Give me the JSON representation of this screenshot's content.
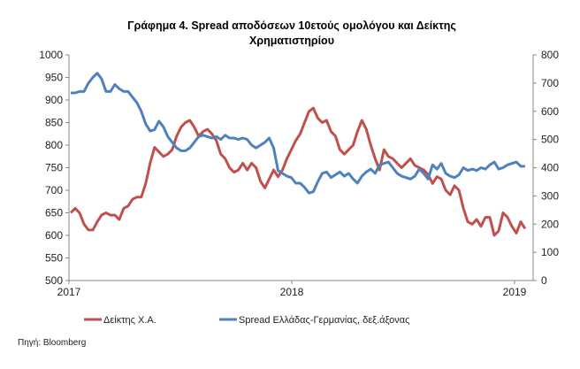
{
  "chart_data": {
    "type": "line",
    "title_lines": [
      "Γράφημα 4. Spread αποδόσεων 10ετούς ομολόγου και Δείκτης",
      "Χρηματιστηρίου"
    ],
    "x_start": 2017.008,
    "x_step": 0.0198,
    "xlim": [
      2017,
      2019.1
    ],
    "x_ticks": [
      {
        "value": 2017,
        "label": "2017"
      },
      {
        "value": 2018,
        "label": "2018"
      },
      {
        "value": 2019,
        "label": "2019"
      }
    ],
    "y_left": {
      "lim": [
        500,
        1000
      ],
      "ticks": [
        "500",
        "550",
        "600",
        "650",
        "700",
        "750",
        "800",
        "850",
        "900",
        "950",
        "1000"
      ]
    },
    "y_right": {
      "lim": [
        0,
        800
      ],
      "ticks": [
        "0",
        "100",
        "200",
        "300",
        "400",
        "500",
        "600",
        "700",
        "800"
      ]
    },
    "grid": false,
    "legend_position": "bottom",
    "series": [
      {
        "name": "Δείκτης Χ.Α.",
        "axis": "left",
        "color": "#C0504D",
        "values": [
          650,
          660,
          650,
          625,
          612,
          612,
          630,
          645,
          650,
          645,
          645,
          635,
          660,
          665,
          680,
          685,
          685,
          715,
          760,
          795,
          785,
          775,
          780,
          790,
          820,
          840,
          850,
          855,
          840,
          820,
          830,
          835,
          825,
          810,
          780,
          770,
          750,
          740,
          745,
          760,
          745,
          760,
          750,
          720,
          705,
          725,
          745,
          730,
          745,
          770,
          790,
          810,
          825,
          850,
          875,
          882,
          860,
          850,
          855,
          830,
          820,
          790,
          780,
          790,
          800,
          830,
          855,
          835,
          800,
          770,
          745,
          790,
          775,
          770,
          760,
          750,
          760,
          770,
          755,
          750,
          745,
          735,
          715,
          730,
          725,
          700,
          690,
          710,
          700,
          660,
          630,
          625,
          635,
          620,
          640,
          640,
          600,
          610,
          650,
          640,
          620,
          605,
          630,
          615
        ]
      },
      {
        "name": "Spread Ελλάδας-Γερμανίας, δεξ.άξονας",
        "axis": "right",
        "color": "#4F81BD",
        "values": [
          665,
          665,
          670,
          670,
          700,
          720,
          735,
          715,
          670,
          670,
          695,
          680,
          670,
          670,
          650,
          630,
          600,
          555,
          530,
          535,
          565,
          545,
          510,
          490,
          470,
          460,
          460,
          470,
          490,
          510,
          515,
          510,
          505,
          510,
          500,
          515,
          505,
          505,
          500,
          505,
          500,
          480,
          470,
          480,
          490,
          505,
          470,
          390,
          380,
          370,
          365,
          345,
          345,
          330,
          310,
          315,
          350,
          380,
          385,
          365,
          375,
          385,
          370,
          380,
          360,
          345,
          370,
          385,
          395,
          380,
          410,
          415,
          420,
          400,
          380,
          370,
          365,
          360,
          370,
          395,
          380,
          360,
          410,
          395,
          415,
          380,
          370,
          365,
          375,
          400,
          390,
          395,
          390,
          400,
          395,
          410,
          420,
          395,
          400,
          410,
          415,
          420,
          405,
          405
        ]
      }
    ]
  },
  "source": "Πηγή: Bloomberg"
}
